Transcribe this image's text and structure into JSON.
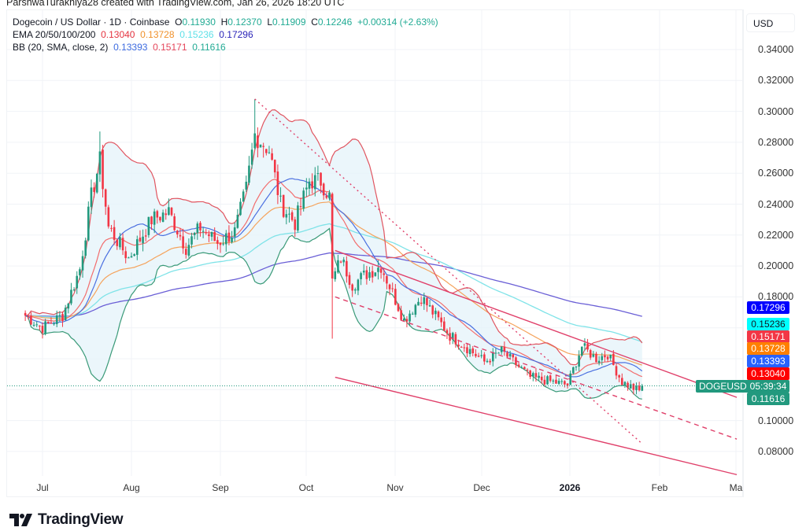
{
  "credit": "ParshwaTurakhiya28 created with TradingView.com, Jan 26, 2026 18:20 UTC",
  "legend": {
    "symbol": "Dogecoin / US Dollar · 1D · Coinbase",
    "ohlc": {
      "o_label": "O",
      "o": "0.11930",
      "h_label": "H",
      "h": "0.12370",
      "l_label": "L",
      "l": "0.11909",
      "c_label": "C",
      "c": "0.12246",
      "change": "+0.00314 (+2.63%)"
    },
    "ema": {
      "label": "EMA 20/50/100/200",
      "values": [
        "0.13040",
        "0.13728",
        "0.15236",
        "0.17296"
      ]
    },
    "bb": {
      "label": "BB (20, SMA, close, 2)",
      "values": [
        "0.13393",
        "0.15171",
        "0.11616"
      ]
    }
  },
  "axis": {
    "currency": "USD",
    "y_ticks": [
      "0.34000",
      "0.32000",
      "0.30000",
      "0.28000",
      "0.26000",
      "0.24000",
      "0.22000",
      "0.20000",
      "0.18000",
      "0.10000",
      "0.08000"
    ],
    "x_ticks": [
      {
        "label": "Jul",
        "bold": false
      },
      {
        "label": "Aug",
        "bold": false
      },
      {
        "label": "Sep",
        "bold": false
      },
      {
        "label": "Oct",
        "bold": false
      },
      {
        "label": "Nov",
        "bold": false
      },
      {
        "label": "Dec",
        "bold": false
      },
      {
        "label": "2026",
        "bold": true
      },
      {
        "label": "Feb",
        "bold": false
      },
      {
        "label": "Ma",
        "bold": false
      }
    ]
  },
  "price_tags": [
    {
      "name": "ema-200-tag",
      "value": "0.17296",
      "color": "#0000ff"
    },
    {
      "name": "ema-100-tag",
      "value": "0.15236",
      "color": "#00ffff",
      "text_color": "#131722"
    },
    {
      "name": "bb-upper-tag",
      "value": "0.15171",
      "color": "#f23645"
    },
    {
      "name": "ema-50-tag",
      "value": "0.13728",
      "color": "#ff8000"
    },
    {
      "name": "bb-basis-tag",
      "value": "0.13393",
      "color": "#2962ff"
    },
    {
      "name": "ema-20-tag",
      "value": "0.13040",
      "color": "#ff0000"
    },
    {
      "name": "countdown-tag",
      "value": "05:39:34",
      "color": "#22997e"
    },
    {
      "name": "bb-lower-tag",
      "value": "0.11616",
      "color": "#22997e"
    }
  ],
  "symbol_tag": "DOGEUSD",
  "brand": "TradingView",
  "colors": {
    "up": "#22997e",
    "down": "#f23645",
    "ema20": "#f26d6d",
    "ema50": "#f5a35c",
    "ema100": "#7fe3e8",
    "ema200": "#6a5fd6",
    "bb_basis": "#4a6fe0",
    "bb_upper": "#e05560",
    "bb_lower": "#3a9a78",
    "bb_fill": "#e6f4fa",
    "trend": "#e0406a",
    "grid": "#f0f3f7"
  },
  "chart_data": {
    "type": "candlestick",
    "title": "Dogecoin / US Dollar · 1D · Coinbase",
    "ylabel": "USD",
    "ylim": [
      0.07,
      0.35
    ],
    "x_range": [
      "Jun 2025",
      "Mar 2026"
    ],
    "grid": true,
    "last": {
      "open": 0.1193,
      "high": 0.1237,
      "low": 0.11909,
      "close": 0.12246,
      "change": 0.00314,
      "change_pct": 2.63
    },
    "close_keypoints": [
      {
        "date": "2025-06-25",
        "close": 0.168
      },
      {
        "date": "2025-07-01",
        "close": 0.16
      },
      {
        "date": "2025-07-08",
        "close": 0.168
      },
      {
        "date": "2025-07-14",
        "close": 0.198
      },
      {
        "date": "2025-07-18",
        "close": 0.245
      },
      {
        "date": "2025-07-21",
        "close": 0.268
      },
      {
        "date": "2025-07-24",
        "close": 0.225
      },
      {
        "date": "2025-07-31",
        "close": 0.205
      },
      {
        "date": "2025-08-08",
        "close": 0.23
      },
      {
        "date": "2025-08-14",
        "close": 0.235
      },
      {
        "date": "2025-08-20",
        "close": 0.212
      },
      {
        "date": "2025-08-25",
        "close": 0.225
      },
      {
        "date": "2025-08-31",
        "close": 0.215
      },
      {
        "date": "2025-09-06",
        "close": 0.222
      },
      {
        "date": "2025-09-10",
        "close": 0.25
      },
      {
        "date": "2025-09-13",
        "close": 0.285
      },
      {
        "date": "2025-09-18",
        "close": 0.275
      },
      {
        "date": "2025-09-22",
        "close": 0.24
      },
      {
        "date": "2025-09-27",
        "close": 0.228
      },
      {
        "date": "2025-10-02",
        "close": 0.255
      },
      {
        "date": "2025-10-06",
        "close": 0.255
      },
      {
        "date": "2025-10-09",
        "close": 0.245
      },
      {
        "date": "2025-10-10",
        "close": 0.19
      },
      {
        "date": "2025-10-13",
        "close": 0.205
      },
      {
        "date": "2025-10-17",
        "close": 0.188
      },
      {
        "date": "2025-10-22",
        "close": 0.195
      },
      {
        "date": "2025-10-27",
        "close": 0.2
      },
      {
        "date": "2025-11-04",
        "close": 0.165
      },
      {
        "date": "2025-11-10",
        "close": 0.18
      },
      {
        "date": "2025-11-20",
        "close": 0.155
      },
      {
        "date": "2025-11-24",
        "close": 0.15
      },
      {
        "date": "2025-12-02",
        "close": 0.138
      },
      {
        "date": "2025-12-08",
        "close": 0.145
      },
      {
        "date": "2025-12-18",
        "close": 0.128
      },
      {
        "date": "2025-12-31",
        "close": 0.123
      },
      {
        "date": "2026-01-05",
        "close": 0.148
      },
      {
        "date": "2026-01-10",
        "close": 0.14
      },
      {
        "date": "2026-01-14",
        "close": 0.143
      },
      {
        "date": "2026-01-19",
        "close": 0.125
      },
      {
        "date": "2026-01-25",
        "close": 0.119
      },
      {
        "date": "2026-01-26",
        "close": 0.12246
      }
    ],
    "indicators": {
      "EMA20": 0.1304,
      "EMA50": 0.13728,
      "EMA100": 0.15236,
      "EMA200": 0.17296,
      "BB_basis": 0.13393,
      "BB_upper": 0.15171,
      "BB_lower": 0.11616
    },
    "drawings": [
      {
        "type": "trendline",
        "style": "dotted",
        "from": {
          "date": "2025-09-13",
          "price": 0.308
        },
        "to": {
          "date": "2026-01-26",
          "price": 0.085
        }
      },
      {
        "type": "channel_upper",
        "style": "solid",
        "from": {
          "date": "2025-10-11",
          "price": 0.21
        },
        "to": {
          "date": "2026-02-28",
          "price": 0.115
        }
      },
      {
        "type": "channel_mid",
        "style": "dashed",
        "from": {
          "date": "2025-10-11",
          "price": 0.18
        },
        "to": {
          "date": "2026-02-28",
          "price": 0.088
        }
      },
      {
        "type": "channel_lower",
        "style": "solid",
        "from": {
          "date": "2025-10-11",
          "price": 0.128
        },
        "to": {
          "date": "2026-02-28",
          "price": 0.065
        }
      }
    ]
  }
}
